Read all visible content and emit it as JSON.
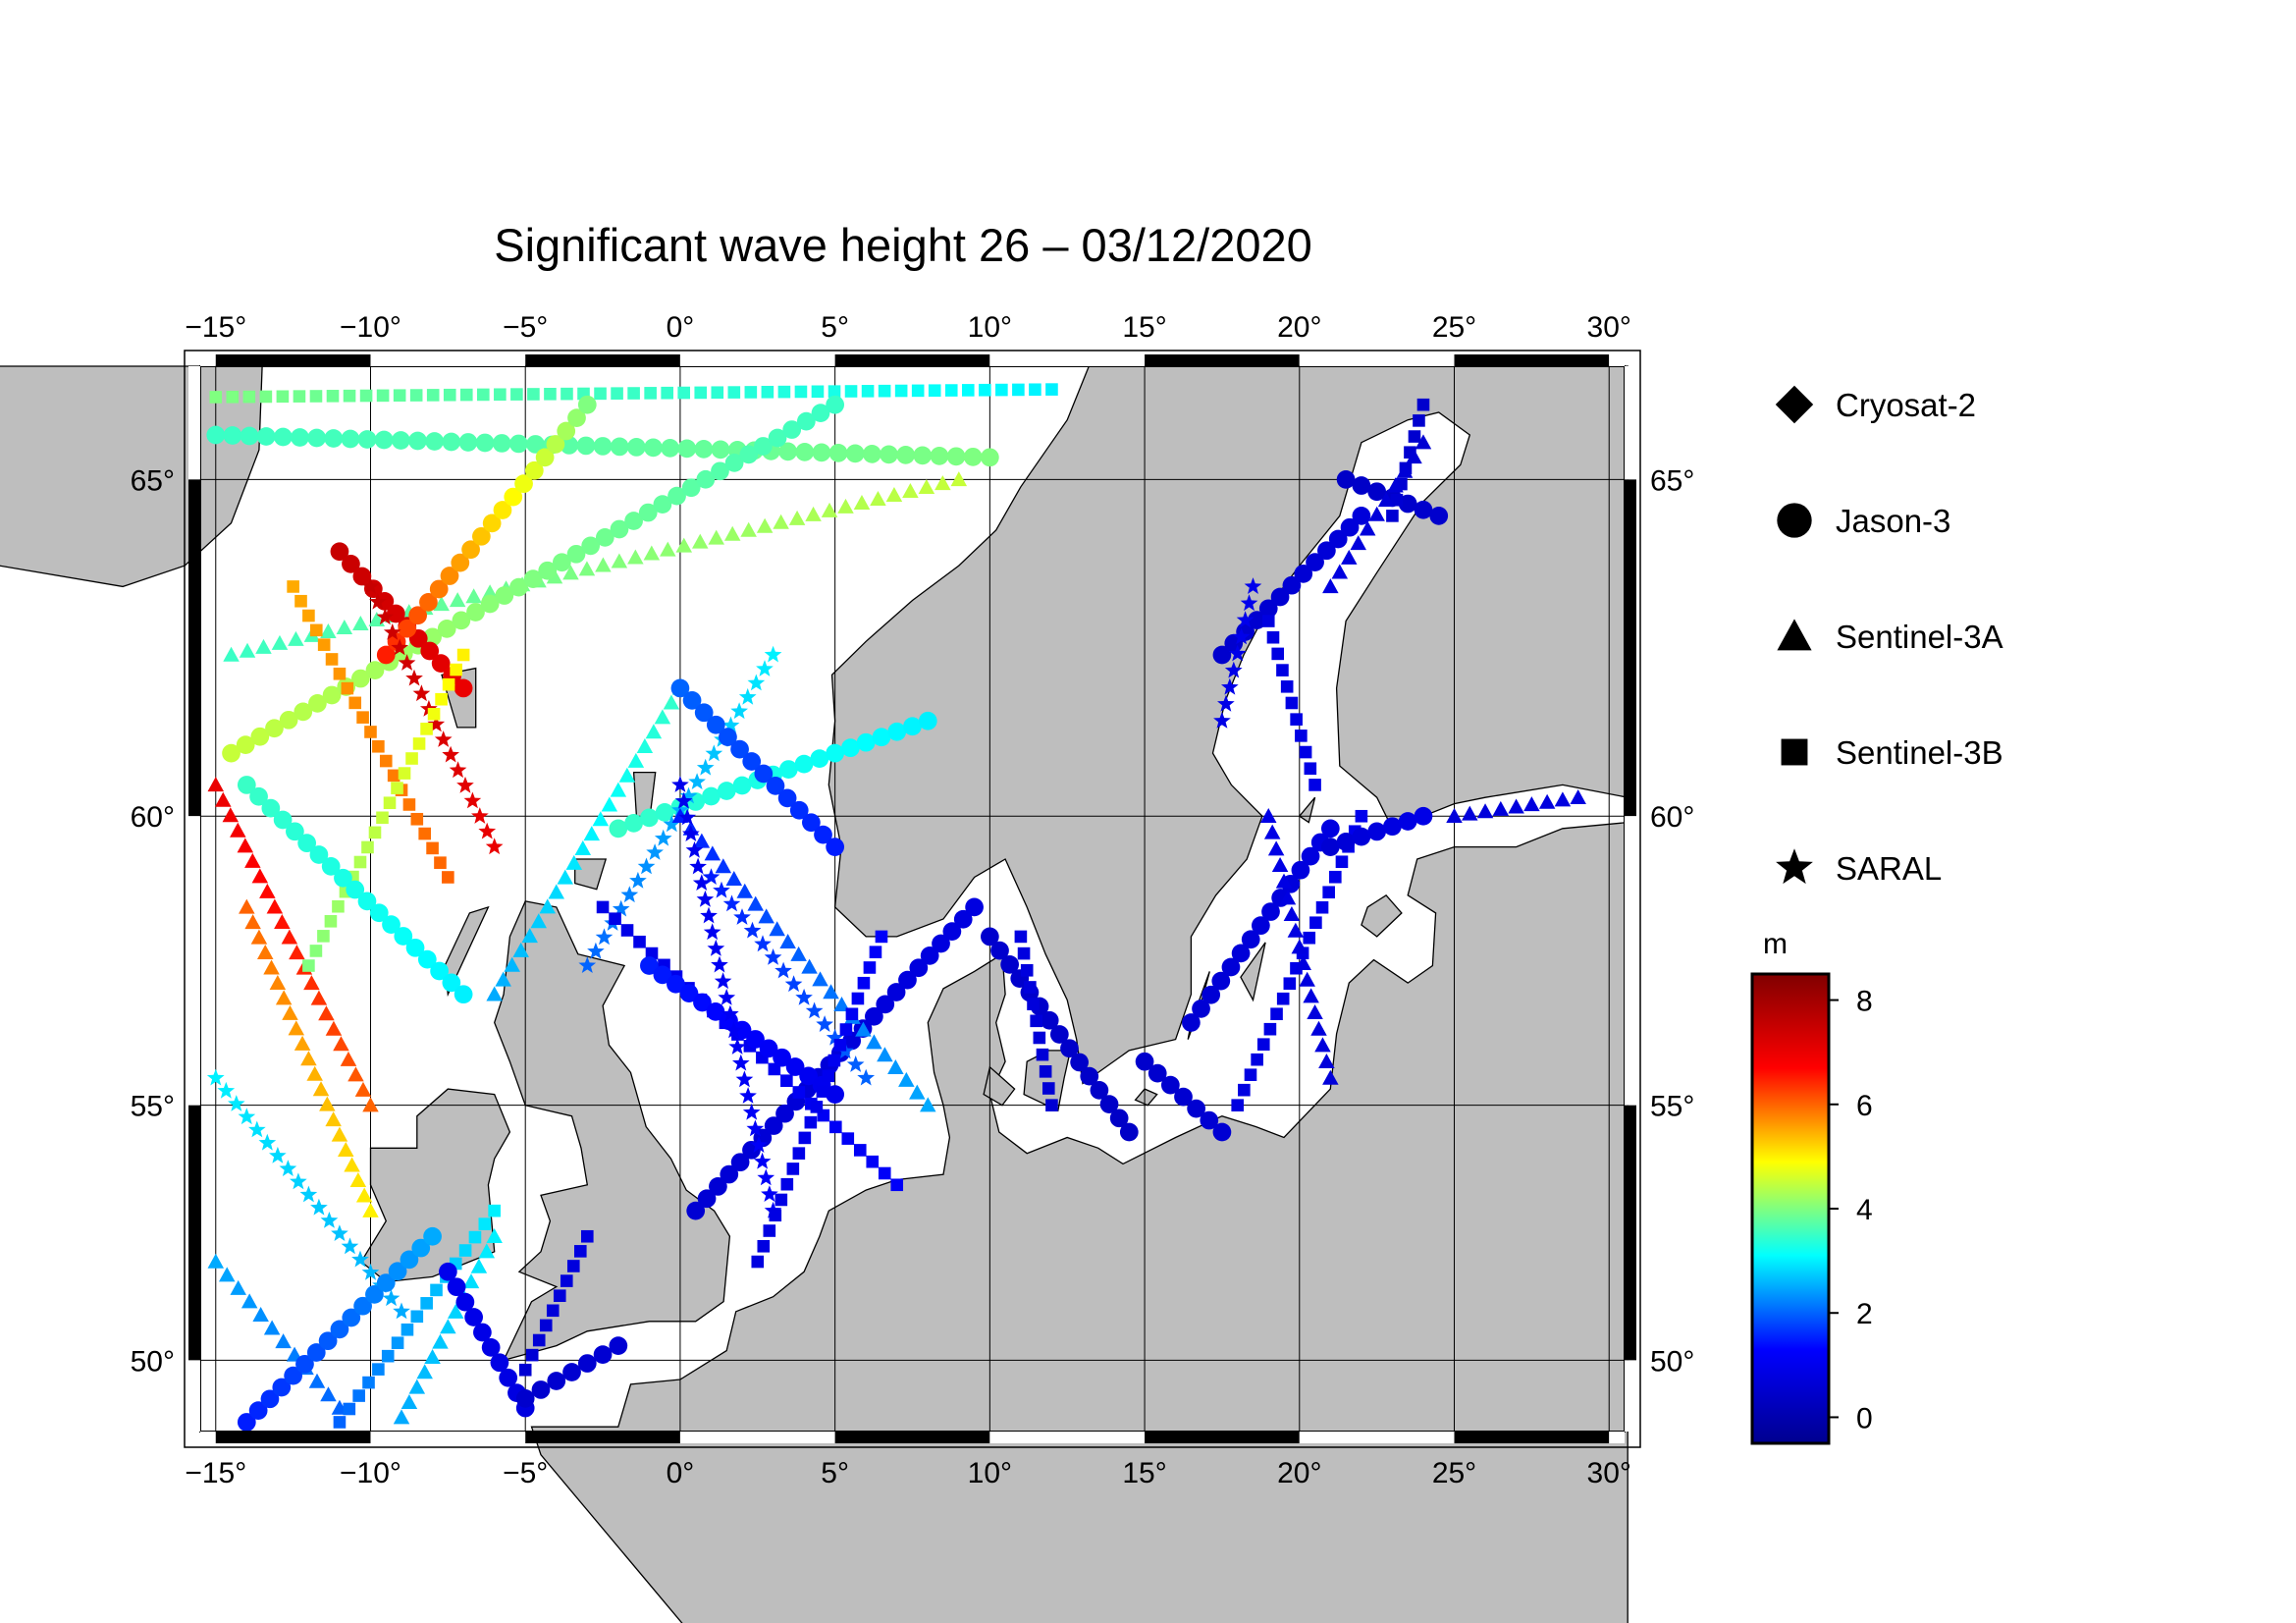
{
  "title": "Significant wave height 26 – 03/12/2020",
  "map": {
    "lon_range": [
      -15.5,
      30.5
    ],
    "lat_range": [
      48.5,
      66.5
    ],
    "lon_ticks": [
      "−15",
      "−10",
      "−5",
      "0",
      "5",
      "10",
      "15",
      "20",
      "25",
      "30"
    ],
    "lat_ticks": [
      "65",
      "60",
      "55",
      "50"
    ],
    "lat_tick_values": [
      65,
      60,
      55,
      50
    ],
    "lon_tick_values": [
      -15,
      -10,
      -5,
      0,
      5,
      10,
      15,
      20,
      25,
      30
    ],
    "land_color": "#bebebe",
    "sea_color": "#ffffff"
  },
  "legend": {
    "items": [
      {
        "label": "Cryosat-2",
        "symbol": "diamond"
      },
      {
        "label": "Jason-3",
        "symbol": "circle"
      },
      {
        "label": "Sentinel-3A",
        "symbol": "triangle"
      },
      {
        "label": "Sentinel-3B",
        "symbol": "square"
      },
      {
        "label": "SARAL",
        "symbol": "star"
      }
    ]
  },
  "colorbar": {
    "unit": "m",
    "min": -0.5,
    "max": 8.5,
    "ticks": [
      "8",
      "6",
      "4",
      "2",
      "0"
    ],
    "tick_values": [
      8,
      6,
      4,
      2,
      0
    ],
    "colors": [
      "#00008f",
      "#0000ff",
      "#00ffff",
      "#ffff00",
      "#ff0000",
      "#800000"
    ]
  },
  "tracks": [
    {
      "symbol": "circle",
      "lon": [
        -15,
        10
      ],
      "lat": [
        65.6,
        65.3
      ],
      "h": [
        3.5,
        4.0
      ]
    },
    {
      "symbol": "square",
      "lon": [
        -15,
        12
      ],
      "lat": [
        66.1,
        66.2
      ],
      "h": [
        4.0,
        3.0
      ]
    },
    {
      "symbol": "triangle",
      "lon": [
        -14.5,
        9
      ],
      "lat": [
        62.5,
        65.0
      ],
      "h": [
        3.5,
        4.5
      ]
    },
    {
      "symbol": "circle",
      "lon": [
        -14.5,
        5
      ],
      "lat": [
        61.0,
        66.0
      ],
      "h": [
        4.5,
        3.5
      ]
    },
    {
      "symbol": "circle",
      "lon": [
        -11,
        -7
      ],
      "lat": [
        64.0,
        62.0
      ],
      "h": [
        7.5,
        7.0
      ]
    },
    {
      "symbol": "circle",
      "lon": [
        -9.5,
        -3
      ],
      "lat": [
        62.5,
        66.0
      ],
      "h": [
        6.5,
        4.0
      ]
    },
    {
      "symbol": "square",
      "lon": [
        -12.5,
        -7.5
      ],
      "lat": [
        63.5,
        59.0
      ],
      "h": [
        5.5,
        6.0
      ]
    },
    {
      "symbol": "star",
      "lon": [
        -10,
        -6
      ],
      "lat": [
        63.5,
        59.5
      ],
      "h": [
        7.5,
        7.0
      ]
    },
    {
      "symbol": "triangle",
      "lon": [
        -15,
        -10
      ],
      "lat": [
        60.5,
        55.0
      ],
      "h": [
        7.0,
        6.0
      ]
    },
    {
      "symbol": "triangle",
      "lon": [
        -14,
        -10
      ],
      "lat": [
        58.5,
        53.0
      ],
      "h": [
        6.0,
        5.0
      ]
    },
    {
      "symbol": "square",
      "lon": [
        -12,
        -7
      ],
      "lat": [
        57.5,
        62.5
      ],
      "h": [
        4.0,
        5.0
      ]
    },
    {
      "symbol": "circle",
      "lon": [
        -14,
        -7
      ],
      "lat": [
        60.5,
        57.0
      ],
      "h": [
        3.5,
        3.0
      ]
    },
    {
      "symbol": "star",
      "lon": [
        -15,
        -9
      ],
      "lat": [
        55.5,
        51.0
      ],
      "h": [
        3.0,
        2.5
      ]
    },
    {
      "symbol": "triangle",
      "lon": [
        -15,
        -11
      ],
      "lat": [
        52.0,
        49.0
      ],
      "h": [
        2.5,
        2.0
      ]
    },
    {
      "symbol": "circle",
      "lon": [
        -14,
        -8
      ],
      "lat": [
        48.7,
        52.5
      ],
      "h": [
        1.5,
        2.5
      ]
    },
    {
      "symbol": "square",
      "lon": [
        -11,
        -6
      ],
      "lat": [
        48.7,
        53.0
      ],
      "h": [
        2.0,
        3.0
      ]
    },
    {
      "symbol": "triangle",
      "lon": [
        -9,
        -6
      ],
      "lat": [
        48.8,
        52.5
      ],
      "h": [
        2.5,
        3.0
      ]
    },
    {
      "symbol": "circle",
      "lon": [
        -5,
        -7.5
      ],
      "lat": [
        49.0,
        51.8
      ],
      "h": [
        0.8,
        1.0
      ]
    },
    {
      "symbol": "circle",
      "lon": [
        -5,
        -2
      ],
      "lat": [
        49.2,
        50.3
      ],
      "h": [
        0.5,
        0.6
      ]
    },
    {
      "symbol": "square",
      "lon": [
        -5,
        -3
      ],
      "lat": [
        49.8,
        52.5
      ],
      "h": [
        0.6,
        0.8
      ]
    },
    {
      "symbol": "circle",
      "lon": [
        -2,
        8
      ],
      "lat": [
        59.8,
        61.5
      ],
      "h": [
        3.5,
        3.0
      ]
    },
    {
      "symbol": "triangle",
      "lon": [
        -6,
        0
      ],
      "lat": [
        57.0,
        62.0
      ],
      "h": [
        2.5,
        3.5
      ]
    },
    {
      "symbol": "star",
      "lon": [
        -3,
        3
      ],
      "lat": [
        57.5,
        62.5
      ],
      "h": [
        2.0,
        3.0
      ]
    },
    {
      "symbol": "circle",
      "lon": [
        0,
        5
      ],
      "lat": [
        62.0,
        59.5
      ],
      "h": [
        2.0,
        1.5
      ]
    },
    {
      "symbol": "circle",
      "lon": [
        0.5,
        9.5
      ],
      "lat": [
        53.0,
        58.5
      ],
      "h": [
        0.6,
        0.8
      ]
    },
    {
      "symbol": "square",
      "lon": [
        -2.5,
        7
      ],
      "lat": [
        58.5,
        53.5
      ],
      "h": [
        0.9,
        1.2
      ]
    },
    {
      "symbol": "circle",
      "lon": [
        -1,
        5
      ],
      "lat": [
        57.5,
        55.2
      ],
      "h": [
        1.5,
        1.0
      ]
    },
    {
      "symbol": "triangle",
      "lon": [
        0,
        8
      ],
      "lat": [
        60.0,
        55.0
      ],
      "h": [
        1.5,
        2.5
      ]
    },
    {
      "symbol": "star",
      "lon": [
        1,
        6
      ],
      "lat": [
        59.0,
        55.5
      ],
      "h": [
        1.5,
        2.0
      ]
    },
    {
      "symbol": "star",
      "lon": [
        0,
        3
      ],
      "lat": [
        60.5,
        53.0
      ],
      "h": [
        1.0,
        1.2
      ]
    },
    {
      "symbol": "square",
      "lon": [
        6.5,
        2.5
      ],
      "lat": [
        58.0,
        52.0
      ],
      "h": [
        1.2,
        0.8
      ]
    },
    {
      "symbol": "circle",
      "lon": [
        10,
        14.5
      ],
      "lat": [
        58.0,
        54.5
      ],
      "h": [
        0.5,
        0.4
      ]
    },
    {
      "symbol": "square",
      "lon": [
        11,
        12
      ],
      "lat": [
        58.0,
        55.0
      ],
      "h": [
        0.8,
        0.6
      ]
    },
    {
      "symbol": "circle",
      "lon": [
        15,
        17.5
      ],
      "lat": [
        55.8,
        54.5
      ],
      "h": [
        0.5,
        0.6
      ]
    },
    {
      "symbol": "circle",
      "lon": [
        16.5,
        21
      ],
      "lat": [
        56.5,
        59.8
      ],
      "h": [
        0.6,
        0.8
      ]
    },
    {
      "symbol": "square",
      "lon": [
        18,
        22
      ],
      "lat": [
        55.0,
        60.0
      ],
      "h": [
        0.8,
        1.0
      ]
    },
    {
      "symbol": "triangle",
      "lon": [
        19,
        21
      ],
      "lat": [
        60.0,
        55.5
      ],
      "h": [
        0.9,
        0.7
      ]
    },
    {
      "symbol": "circle",
      "lon": [
        21,
        24
      ],
      "lat": [
        59.5,
        60.0
      ],
      "h": [
        0.6,
        0.9
      ]
    },
    {
      "symbol": "triangle",
      "lon": [
        25,
        29
      ],
      "lat": [
        60.0,
        60.3
      ],
      "h": [
        0.7,
        0.8
      ]
    },
    {
      "symbol": "circle",
      "lon": [
        17.5,
        22
      ],
      "lat": [
        62.5,
        64.5
      ],
      "h": [
        0.5,
        0.7
      ]
    },
    {
      "symbol": "square",
      "lon": [
        19,
        20.5
      ],
      "lat": [
        63.0,
        60.5
      ],
      "h": [
        0.8,
        0.9
      ]
    },
    {
      "symbol": "star",
      "lon": [
        17.5,
        18.5
      ],
      "lat": [
        61.5,
        63.5
      ],
      "h": [
        0.9,
        1.0
      ]
    },
    {
      "symbol": "circle",
      "lon": [
        21.5,
        24.5
      ],
      "lat": [
        65.0,
        64.5
      ],
      "h": [
        0.4,
        0.5
      ]
    },
    {
      "symbol": "square",
      "lon": [
        23,
        24
      ],
      "lat": [
        64.5,
        66.0
      ],
      "h": [
        0.6,
        0.5
      ]
    },
    {
      "symbol": "triangle",
      "lon": [
        21,
        24
      ],
      "lat": [
        63.5,
        65.5
      ],
      "h": [
        0.8,
        0.6
      ]
    }
  ]
}
